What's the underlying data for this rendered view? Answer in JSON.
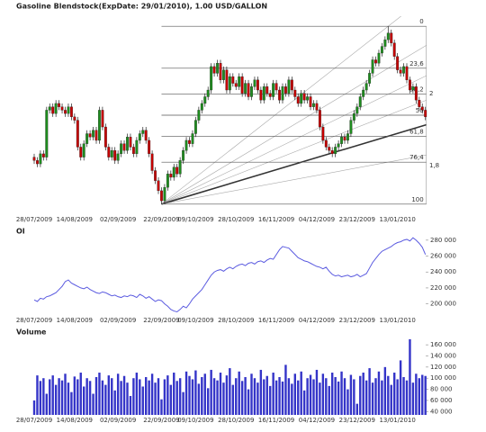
{
  "chart_data": [
    {
      "type": "candlestick",
      "title": "Gasoline Blendstock(ExpDate: 29/01/2010), 1.00 USD/GALLON",
      "categories": [
        "28/07/2009",
        null,
        null,
        null,
        null,
        null,
        null,
        null,
        null,
        null,
        null,
        null,
        null,
        "14/08/2009",
        null,
        null,
        null,
        null,
        null,
        null,
        null,
        null,
        null,
        null,
        null,
        null,
        null,
        "02/09/2009",
        null,
        null,
        null,
        null,
        null,
        null,
        null,
        null,
        null,
        null,
        null,
        null,
        null,
        "22/09/2009",
        null,
        null,
        null,
        null,
        null,
        null,
        null,
        null,
        null,
        null,
        "09/10/2009",
        null,
        null,
        null,
        null,
        null,
        null,
        null,
        null,
        null,
        null,
        null,
        null,
        "28/10/2009",
        null,
        null,
        null,
        null,
        null,
        null,
        null,
        null,
        null,
        null,
        null,
        null,
        "16/11/2009",
        null,
        null,
        null,
        null,
        null,
        null,
        null,
        null,
        null,
        null,
        null,
        null,
        "04/12/2009",
        null,
        null,
        null,
        null,
        null,
        null,
        null,
        null,
        null,
        null,
        null,
        null,
        "23/12/2009",
        null,
        null,
        null,
        null,
        null,
        null,
        null,
        null,
        null,
        null,
        null,
        null,
        "13/01/2010",
        null,
        null,
        null,
        null,
        null,
        null,
        null,
        null,
        null
      ],
      "open": [
        1.79,
        1.78,
        1.77,
        1.8,
        1.79,
        1.93,
        1.94,
        1.92,
        1.95,
        1.94,
        1.93,
        1.92,
        1.94,
        1.91,
        1.9,
        1.82,
        1.79,
        1.83,
        1.86,
        1.85,
        1.87,
        1.84,
        1.93,
        1.88,
        1.82,
        1.79,
        1.81,
        1.78,
        1.8,
        1.83,
        1.81,
        1.85,
        1.82,
        1.8,
        1.84,
        1.86,
        1.87,
        1.84,
        1.8,
        1.75,
        1.72,
        1.69,
        1.66,
        1.7,
        1.74,
        1.73,
        1.76,
        1.74,
        1.78,
        1.81,
        1.84,
        1.83,
        1.86,
        1.9,
        1.93,
        1.95,
        1.97,
        1.99,
        2.06,
        2.04,
        2.07,
        2.02,
        2.05,
        1.99,
        2.03,
        2.01,
        2.0,
        2.03,
        1.98,
        2.01,
        1.97,
        2.0,
        2.02,
        1.99,
        1.96,
        2.0,
        1.98,
        1.97,
        2.01,
        1.99,
        1.96,
        2.0,
        1.98,
        2.02,
        1.99,
        1.97,
        1.95,
        1.98,
        1.96,
        1.97,
        1.94,
        1.95,
        1.93,
        1.88,
        1.84,
        1.82,
        1.81,
        1.8,
        1.82,
        1.83,
        1.85,
        1.84,
        1.86,
        1.9,
        1.92,
        1.94,
        1.97,
        1.99,
        2.01,
        2.04,
        2.08,
        2.07,
        2.1,
        2.12,
        2.14,
        2.16,
        2.13,
        2.09,
        2.05,
        2.04,
        2.06,
        2.02,
        1.99,
        2.0,
        1.96,
        1.94,
        1.93
      ],
      "high": [
        1.8,
        1.79,
        1.81,
        1.81,
        1.94,
        1.95,
        1.95,
        1.96,
        1.96,
        1.95,
        1.94,
        1.95,
        1.95,
        1.92,
        1.91,
        1.83,
        1.84,
        1.87,
        1.87,
        1.88,
        1.88,
        1.94,
        1.94,
        1.89,
        1.83,
        1.82,
        1.82,
        1.81,
        1.84,
        1.84,
        1.86,
        1.86,
        1.83,
        1.85,
        1.87,
        1.88,
        1.88,
        1.85,
        1.81,
        1.76,
        1.73,
        1.7,
        1.71,
        1.75,
        1.75,
        1.77,
        1.77,
        1.79,
        1.82,
        1.85,
        1.85,
        1.87,
        1.91,
        1.94,
        1.96,
        1.98,
        2.0,
        2.07,
        2.07,
        2.08,
        2.08,
        2.06,
        2.06,
        2.04,
        2.04,
        2.02,
        2.04,
        2.04,
        2.02,
        2.02,
        2.01,
        2.03,
        2.03,
        2.0,
        2.01,
        2.01,
        1.99,
        2.02,
        2.02,
        2.0,
        2.01,
        2.01,
        2.03,
        2.03,
        2.0,
        1.98,
        1.99,
        1.99,
        1.98,
        1.98,
        1.96,
        1.96,
        1.94,
        1.89,
        1.85,
        1.83,
        1.82,
        1.83,
        1.84,
        1.86,
        1.86,
        1.87,
        1.91,
        1.93,
        1.95,
        1.98,
        2.0,
        2.02,
        2.05,
        2.09,
        2.09,
        2.11,
        2.13,
        2.15,
        2.18,
        2.17,
        2.14,
        2.1,
        2.06,
        2.07,
        2.07,
        2.03,
        2.01,
        2.01,
        1.97,
        1.95,
        1.94
      ],
      "low": [
        1.77,
        1.76,
        1.76,
        1.78,
        1.78,
        1.92,
        1.91,
        1.91,
        1.93,
        1.92,
        1.91,
        1.91,
        1.9,
        1.89,
        1.81,
        1.78,
        1.78,
        1.82,
        1.84,
        1.84,
        1.83,
        1.83,
        1.87,
        1.81,
        1.78,
        1.78,
        1.77,
        1.77,
        1.79,
        1.8,
        1.8,
        1.81,
        1.79,
        1.79,
        1.83,
        1.85,
        1.83,
        1.79,
        1.74,
        1.71,
        1.68,
        1.65,
        1.65,
        1.69,
        1.72,
        1.72,
        1.73,
        1.73,
        1.77,
        1.8,
        1.82,
        1.82,
        1.85,
        1.89,
        1.92,
        1.94,
        1.96,
        1.98,
        2.03,
        2.03,
        2.01,
        2.01,
        1.98,
        1.98,
        2.0,
        1.99,
        1.99,
        1.97,
        1.97,
        1.96,
        1.96,
        1.99,
        1.98,
        1.95,
        1.95,
        1.97,
        1.96,
        1.96,
        1.98,
        1.95,
        1.95,
        1.97,
        1.97,
        1.98,
        1.96,
        1.94,
        1.94,
        1.95,
        1.95,
        1.93,
        1.93,
        1.92,
        1.87,
        1.83,
        1.81,
        1.8,
        1.79,
        1.79,
        1.81,
        1.82,
        1.83,
        1.83,
        1.85,
        1.89,
        1.91,
        1.93,
        1.96,
        1.98,
        2.0,
        2.03,
        2.06,
        2.06,
        2.09,
        2.11,
        2.13,
        2.12,
        2.08,
        2.04,
        2.03,
        2.03,
        2.01,
        1.98,
        1.98,
        1.95,
        1.93,
        1.92,
        1.9
      ],
      "close": [
        1.78,
        1.77,
        1.8,
        1.79,
        1.93,
        1.94,
        1.92,
        1.95,
        1.94,
        1.93,
        1.92,
        1.94,
        1.91,
        1.9,
        1.82,
        1.79,
        1.83,
        1.86,
        1.85,
        1.87,
        1.84,
        1.93,
        1.88,
        1.82,
        1.79,
        1.81,
        1.78,
        1.8,
        1.83,
        1.81,
        1.85,
        1.82,
        1.8,
        1.84,
        1.86,
        1.87,
        1.84,
        1.8,
        1.75,
        1.72,
        1.69,
        1.66,
        1.7,
        1.74,
        1.73,
        1.76,
        1.74,
        1.78,
        1.81,
        1.84,
        1.83,
        1.86,
        1.9,
        1.93,
        1.95,
        1.97,
        1.99,
        2.06,
        2.04,
        2.07,
        2.02,
        2.05,
        1.99,
        2.03,
        2.01,
        2.0,
        2.03,
        1.98,
        2.01,
        1.97,
        2.0,
        2.02,
        1.99,
        1.96,
        2.0,
        1.98,
        1.97,
        2.01,
        1.99,
        1.96,
        2.0,
        1.98,
        2.02,
        1.99,
        1.97,
        1.95,
        1.98,
        1.96,
        1.97,
        1.94,
        1.95,
        1.93,
        1.88,
        1.84,
        1.82,
        1.81,
        1.8,
        1.82,
        1.83,
        1.85,
        1.84,
        1.86,
        1.9,
        1.92,
        1.94,
        1.97,
        1.99,
        2.01,
        2.04,
        2.08,
        2.07,
        2.1,
        2.12,
        2.14,
        2.16,
        2.13,
        2.09,
        2.05,
        2.04,
        2.06,
        2.02,
        1.99,
        2.0,
        1.96,
        1.94,
        1.93,
        1.91
      ],
      "up_color": "#1e8c1e",
      "down_color": "#c40000",
      "ylim": [
        1.62,
        2.21
      ],
      "fibonacci": {
        "levels": [
          0,
          {
            "value": 23.6,
            "label": "23,6"
          },
          {
            "value": 38.2,
            "label": "38,2"
          },
          50,
          {
            "value": 61.8,
            "label": "61,8"
          },
          {
            "value": 76.4,
            "label": "76,4"
          },
          100
        ]
      },
      "annotations": [
        "2",
        "1,8"
      ]
    },
    {
      "type": "line",
      "title": "OI",
      "categories": [
        "28/07/2009",
        null,
        null,
        null,
        null,
        null,
        null,
        null,
        null,
        null,
        null,
        null,
        null,
        "14/08/2009",
        null,
        null,
        null,
        null,
        null,
        null,
        null,
        null,
        null,
        null,
        null,
        null,
        null,
        "02/09/2009",
        null,
        null,
        null,
        null,
        null,
        null,
        null,
        null,
        null,
        null,
        null,
        null,
        null,
        "22/09/2009",
        null,
        null,
        null,
        null,
        null,
        null,
        null,
        null,
        null,
        null,
        "09/10/2009",
        null,
        null,
        null,
        null,
        null,
        null,
        null,
        null,
        null,
        null,
        null,
        null,
        "28/10/2009",
        null,
        null,
        null,
        null,
        null,
        null,
        null,
        null,
        null,
        null,
        null,
        null,
        "16/11/2009",
        null,
        null,
        null,
        null,
        null,
        null,
        null,
        null,
        null,
        null,
        null,
        null,
        "04/12/2009",
        null,
        null,
        null,
        null,
        null,
        null,
        null,
        null,
        null,
        null,
        null,
        null,
        "23/12/2009",
        null,
        null,
        null,
        null,
        null,
        null,
        null,
        null,
        null,
        null,
        null,
        null,
        "13/01/2010",
        null,
        null,
        null,
        null,
        null,
        null,
        null,
        null,
        null
      ],
      "values": [
        205000,
        203000,
        207000,
        206000,
        209000,
        210000,
        212000,
        214000,
        218000,
        222000,
        228000,
        230000,
        226000,
        224000,
        222000,
        220000,
        219000,
        221000,
        218000,
        216000,
        214000,
        213000,
        215000,
        214000,
        212000,
        210000,
        211000,
        209000,
        208000,
        210000,
        209000,
        211000,
        210000,
        208000,
        212000,
        210000,
        207000,
        209000,
        206000,
        203000,
        205000,
        204000,
        200000,
        197000,
        193000,
        191000,
        190000,
        193000,
        197000,
        195000,
        200000,
        206000,
        210000,
        214000,
        218000,
        224000,
        230000,
        236000,
        240000,
        242000,
        243000,
        241000,
        244000,
        246000,
        244000,
        247000,
        249000,
        250000,
        248000,
        251000,
        252000,
        250000,
        253000,
        254000,
        252000,
        255000,
        257000,
        256000,
        262000,
        268000,
        272000,
        271000,
        270000,
        266000,
        262000,
        258000,
        256000,
        254000,
        253000,
        251000,
        249000,
        247000,
        246000,
        244000,
        246000,
        241000,
        237000,
        235000,
        236000,
        234000,
        235000,
        236000,
        234000,
        235000,
        237000,
        234000,
        236000,
        238000,
        245000,
        252000,
        257000,
        262000,
        266000,
        268000,
        270000,
        272000,
        275000,
        277000,
        278000,
        280000,
        281000,
        279000,
        283000,
        280000,
        276000,
        271000,
        262000
      ],
      "color": "#5b5be0",
      "ylim": [
        186000,
        290000
      ],
      "yticks": [
        {
          "value": 200000,
          "label": "200 000"
        },
        {
          "value": 220000,
          "label": "220 000"
        },
        {
          "value": 240000,
          "label": "240 000"
        },
        {
          "value": 260000,
          "label": "260 000"
        },
        {
          "value": 280000,
          "label": "280 000"
        }
      ]
    },
    {
      "type": "bar",
      "title": "Volume",
      "categories": [
        "28/07/2009",
        null,
        null,
        null,
        null,
        null,
        null,
        null,
        null,
        null,
        null,
        null,
        null,
        "14/08/2009",
        null,
        null,
        null,
        null,
        null,
        null,
        null,
        null,
        null,
        null,
        null,
        null,
        null,
        "02/09/2009",
        null,
        null,
        null,
        null,
        null,
        null,
        null,
        null,
        null,
        null,
        null,
        null,
        null,
        "22/09/2009",
        null,
        null,
        null,
        null,
        null,
        null,
        null,
        null,
        null,
        null,
        "09/10/2009",
        null,
        null,
        null,
        null,
        null,
        null,
        null,
        null,
        null,
        null,
        null,
        null,
        "28/10/2009",
        null,
        null,
        null,
        null,
        null,
        null,
        null,
        null,
        null,
        null,
        null,
        null,
        "16/11/2009",
        null,
        null,
        null,
        null,
        null,
        null,
        null,
        null,
        null,
        null,
        null,
        null,
        "04/12/2009",
        null,
        null,
        null,
        null,
        null,
        null,
        null,
        null,
        null,
        null,
        null,
        null,
        "23/12/2009",
        null,
        null,
        null,
        null,
        null,
        null,
        null,
        null,
        null,
        null,
        null,
        null,
        "13/01/2010",
        null,
        null,
        null,
        null,
        null,
        null,
        null,
        null,
        null
      ],
      "values": [
        60000,
        105000,
        95000,
        100000,
        72000,
        98000,
        105000,
        88000,
        100000,
        96000,
        108000,
        92000,
        75000,
        103000,
        98000,
        110000,
        85000,
        100000,
        95000,
        72000,
        102000,
        110000,
        96000,
        88000,
        105000,
        100000,
        78000,
        108000,
        95000,
        104000,
        92000,
        68000,
        100000,
        110000,
        98000,
        85000,
        102000,
        96000,
        108000,
        92000,
        100000,
        62000,
        98000,
        105000,
        88000,
        110000,
        95000,
        100000,
        75000,
        112000,
        104000,
        98000,
        114000,
        90000,
        102000,
        108000,
        82000,
        115000,
        100000,
        96000,
        110000,
        92000,
        105000,
        118000,
        88000,
        100000,
        112000,
        95000,
        102000,
        80000,
        108000,
        100000,
        92000,
        115000,
        98000,
        104000,
        86000,
        110000,
        96000,
        102000,
        94000,
        124000,
        100000,
        90000,
        108000,
        96000,
        112000,
        78000,
        100000,
        106000,
        98000,
        115000,
        92000,
        108000,
        100000,
        86000,
        110000,
        102000,
        94000,
        112000,
        100000,
        80000,
        106000,
        98000,
        54000,
        104000,
        110000,
        96000,
        118000,
        92000,
        100000,
        112000,
        96000,
        120000,
        104000,
        88000,
        110000,
        98000,
        132000,
        102000,
        96000,
        170000,
        92000,
        108000,
        100000,
        106000,
        104000
      ],
      "color": "#3434c8",
      "ylim": [
        34000,
        178000
      ],
      "yticks": [
        {
          "value": 40000,
          "label": "40 000"
        },
        {
          "value": 60000,
          "label": "60 000"
        },
        {
          "value": 80000,
          "label": "80 000"
        },
        {
          "value": 100000,
          "label": "100 000"
        },
        {
          "value": 120000,
          "label": "120 000"
        },
        {
          "value": 140000,
          "label": "140 000"
        },
        {
          "value": 160000,
          "label": "160 000"
        }
      ]
    }
  ]
}
